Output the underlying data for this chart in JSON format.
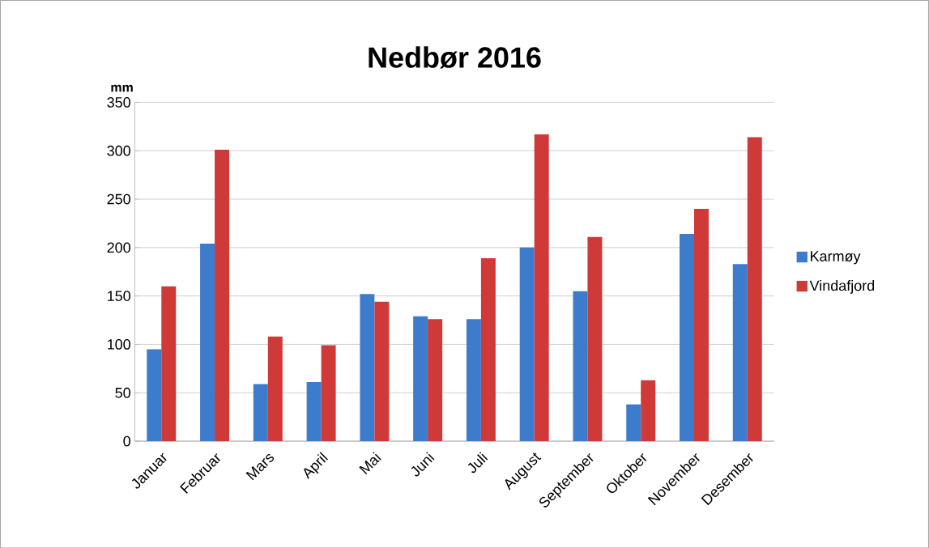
{
  "chart_data": {
    "type": "bar",
    "title": "Nedbør 2016",
    "ylabel": "mm",
    "categories": [
      "Januar",
      "Februar",
      "Mars",
      "April",
      "Mai",
      "Juni",
      "Juli",
      "August",
      "September",
      "Oktober",
      "November",
      "Desember"
    ],
    "series": [
      {
        "name": "Karmøy",
        "color": "#3d7ccc",
        "values": [
          95,
          204,
          59,
          61,
          152,
          129,
          126,
          200,
          155,
          38,
          214,
          183
        ]
      },
      {
        "name": "Vindafjord",
        "color": "#cf3a38",
        "values": [
          160,
          301,
          108,
          99,
          144,
          126,
          189,
          317,
          211,
          63,
          240,
          314
        ]
      }
    ],
    "ylim": [
      0,
      350
    ],
    "yticks": [
      0,
      50,
      100,
      150,
      200,
      250,
      300,
      350
    ],
    "grid": "y",
    "legend": "right"
  }
}
